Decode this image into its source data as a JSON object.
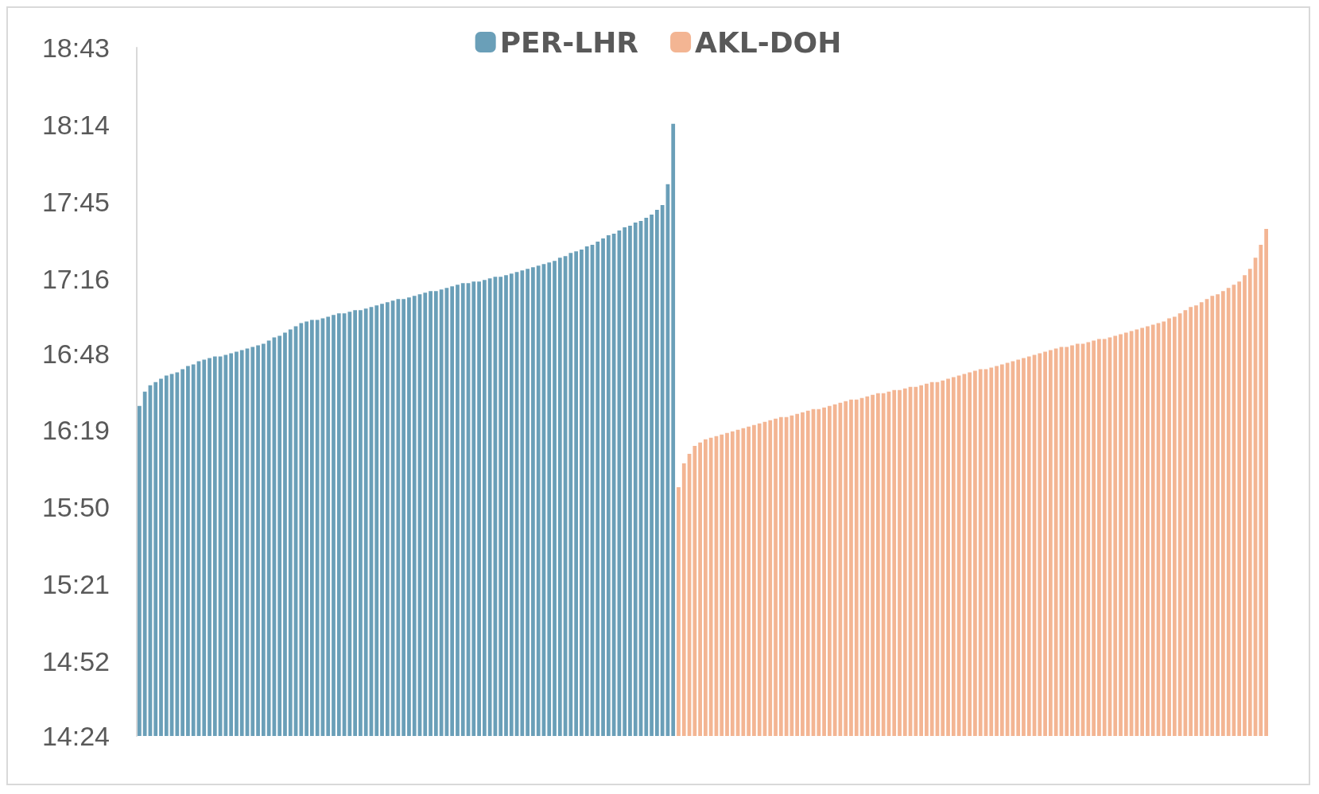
{
  "chart_data": {
    "type": "bar",
    "categories": [
      null,
      null,
      null,
      null,
      null,
      null,
      null,
      null,
      null,
      null,
      null,
      null,
      null,
      null,
      null,
      null,
      null,
      null,
      null,
      null,
      null,
      null,
      null,
      null,
      null,
      null,
      null,
      null,
      null,
      null,
      null,
      null,
      null,
      null,
      null,
      null,
      null,
      null,
      null,
      null,
      null,
      null,
      null,
      null,
      null,
      null,
      null,
      null,
      null,
      null,
      null,
      null,
      null,
      null,
      null,
      null,
      null,
      null,
      null,
      null,
      null,
      null,
      null,
      null,
      null,
      null,
      null,
      null,
      null,
      null,
      null,
      null,
      null,
      null,
      null,
      null,
      null,
      null,
      null,
      null,
      null,
      null,
      null,
      null,
      null,
      null,
      null,
      null,
      null,
      null,
      null,
      null,
      null,
      null,
      null,
      null,
      null,
      null,
      null,
      null,
      null,
      null,
      null,
      null,
      null,
      null,
      null,
      null,
      null,
      null,
      null,
      null,
      null,
      null,
      null,
      null,
      null,
      null,
      null,
      null,
      null,
      null,
      null,
      null,
      null,
      null,
      null,
      null,
      null,
      null,
      null,
      null,
      null,
      null,
      null,
      null,
      null,
      null,
      null,
      null,
      null,
      null,
      null,
      null,
      null,
      null,
      null,
      null,
      null,
      null,
      null,
      null,
      null,
      null,
      null,
      null,
      null,
      null,
      null,
      null,
      null,
      null,
      null,
      null,
      null,
      null,
      null,
      null,
      null,
      null,
      null,
      null,
      null,
      null,
      null,
      null,
      null,
      null,
      null,
      null,
      null,
      null,
      null,
      null,
      null,
      null,
      null,
      null,
      null,
      null,
      null,
      null,
      null,
      null,
      null,
      null,
      null,
      null,
      null,
      null,
      null,
      null,
      null,
      null,
      null,
      null,
      null,
      null,
      null,
      null
    ],
    "series": [
      {
        "name": "PER-LHR",
        "color": "#6a9fb8",
        "values": [
          16.47,
          16.56,
          16.6,
          16.62,
          16.64,
          16.66,
          16.67,
          16.68,
          16.7,
          16.72,
          16.73,
          16.75,
          16.76,
          16.77,
          16.78,
          16.78,
          16.79,
          16.8,
          16.81,
          16.82,
          16.83,
          16.84,
          16.85,
          16.86,
          16.88,
          16.9,
          16.91,
          16.93,
          16.95,
          16.97,
          16.99,
          17.0,
          17.01,
          17.01,
          17.02,
          17.03,
          17.04,
          17.05,
          17.05,
          17.06,
          17.07,
          17.07,
          17.08,
          17.09,
          17.1,
          17.11,
          17.12,
          17.13,
          17.14,
          17.14,
          17.15,
          17.16,
          17.17,
          17.18,
          17.19,
          17.19,
          17.2,
          17.21,
          17.22,
          17.23,
          17.24,
          17.24,
          17.25,
          17.25,
          17.26,
          17.27,
          17.28,
          17.28,
          17.29,
          17.3,
          17.31,
          17.32,
          17.33,
          17.34,
          17.35,
          17.36,
          17.37,
          17.38,
          17.4,
          17.41,
          17.43,
          17.44,
          17.45,
          17.47,
          17.48,
          17.5,
          17.52,
          17.54,
          17.55,
          17.57,
          17.59,
          17.6,
          17.62,
          17.63,
          17.65,
          17.67,
          17.7,
          17.73,
          17.86,
          18.24,
          null,
          null,
          null,
          null,
          null,
          null,
          null,
          null,
          null,
          null,
          null,
          null,
          null,
          null,
          null,
          null,
          null,
          null,
          null,
          null,
          null,
          null,
          null,
          null,
          null,
          null,
          null,
          null,
          null,
          null,
          null,
          null,
          null,
          null,
          null,
          null,
          null,
          null,
          null,
          null,
          null,
          null,
          null,
          null,
          null,
          null,
          null,
          null,
          null,
          null,
          null,
          null,
          null,
          null,
          null,
          null,
          null,
          null,
          null,
          null,
          null,
          null,
          null,
          null,
          null,
          null,
          null,
          null,
          null,
          null,
          null,
          null,
          null,
          null,
          null,
          null,
          null,
          null,
          null,
          null,
          null,
          null,
          null,
          null,
          null,
          null,
          null,
          null,
          null,
          null,
          null,
          null,
          null,
          null,
          null,
          null,
          null,
          null,
          null,
          null,
          null,
          null,
          null,
          null,
          null,
          null,
          null,
          null,
          null,
          null
        ]
      },
      {
        "name": "AKL-DOH",
        "color": "#f3b593",
        "values": [
          null,
          null,
          null,
          null,
          null,
          null,
          null,
          null,
          null,
          null,
          null,
          null,
          null,
          null,
          null,
          null,
          null,
          null,
          null,
          null,
          null,
          null,
          null,
          null,
          null,
          null,
          null,
          null,
          null,
          null,
          null,
          null,
          null,
          null,
          null,
          null,
          null,
          null,
          null,
          null,
          null,
          null,
          null,
          null,
          null,
          null,
          null,
          null,
          null,
          null,
          null,
          null,
          null,
          null,
          null,
          null,
          null,
          null,
          null,
          null,
          null,
          null,
          null,
          null,
          null,
          null,
          null,
          null,
          null,
          null,
          null,
          null,
          null,
          null,
          null,
          null,
          null,
          null,
          null,
          null,
          null,
          null,
          null,
          null,
          null,
          null,
          null,
          null,
          null,
          null,
          null,
          null,
          null,
          null,
          null,
          null,
          null,
          null,
          null,
          null,
          15.96,
          16.11,
          16.17,
          16.22,
          16.24,
          16.26,
          16.27,
          16.28,
          16.29,
          16.3,
          16.31,
          16.32,
          16.33,
          16.34,
          16.35,
          16.36,
          16.37,
          16.38,
          16.39,
          16.4,
          16.4,
          16.41,
          16.42,
          16.43,
          16.44,
          16.45,
          16.45,
          16.46,
          16.47,
          16.48,
          16.49,
          16.5,
          16.51,
          16.51,
          16.52,
          16.53,
          16.54,
          16.55,
          16.55,
          16.56,
          16.57,
          16.57,
          16.58,
          16.59,
          16.59,
          16.6,
          16.61,
          16.62,
          16.62,
          16.63,
          16.64,
          16.65,
          16.66,
          16.67,
          16.68,
          16.69,
          16.7,
          16.7,
          16.71,
          16.72,
          16.73,
          16.74,
          16.75,
          16.76,
          16.77,
          16.78,
          16.79,
          16.8,
          16.81,
          16.82,
          16.83,
          16.84,
          16.84,
          16.85,
          16.86,
          16.86,
          16.87,
          16.88,
          16.89,
          16.89,
          16.9,
          16.91,
          16.92,
          16.93,
          16.94,
          16.95,
          16.96,
          16.97,
          16.98,
          16.99,
          17.0,
          17.02,
          17.03,
          17.05,
          17.07,
          17.09,
          17.1,
          17.12,
          17.14,
          17.16,
          17.17,
          17.19,
          17.21,
          17.23,
          17.25,
          17.29,
          17.33,
          17.4,
          17.48,
          17.58
        ]
      }
    ],
    "stacked": true,
    "ylim": [
      14.4,
      18.7167
    ],
    "yticks": [
      {
        "value": 14.4,
        "label": "14:24"
      },
      {
        "value": 14.8667,
        "label": "14:52"
      },
      {
        "value": 15.35,
        "label": "15:21"
      },
      {
        "value": 15.8333,
        "label": "15:50"
      },
      {
        "value": 16.3167,
        "label": "16:19"
      },
      {
        "value": 16.8,
        "label": "16:48"
      },
      {
        "value": 17.2667,
        "label": "17:16"
      },
      {
        "value": 17.75,
        "label": "17:45"
      },
      {
        "value": 18.2333,
        "label": "18:14"
      },
      {
        "value": 18.7167,
        "label": "18:43"
      }
    ],
    "grid": false,
    "legend": "top"
  }
}
